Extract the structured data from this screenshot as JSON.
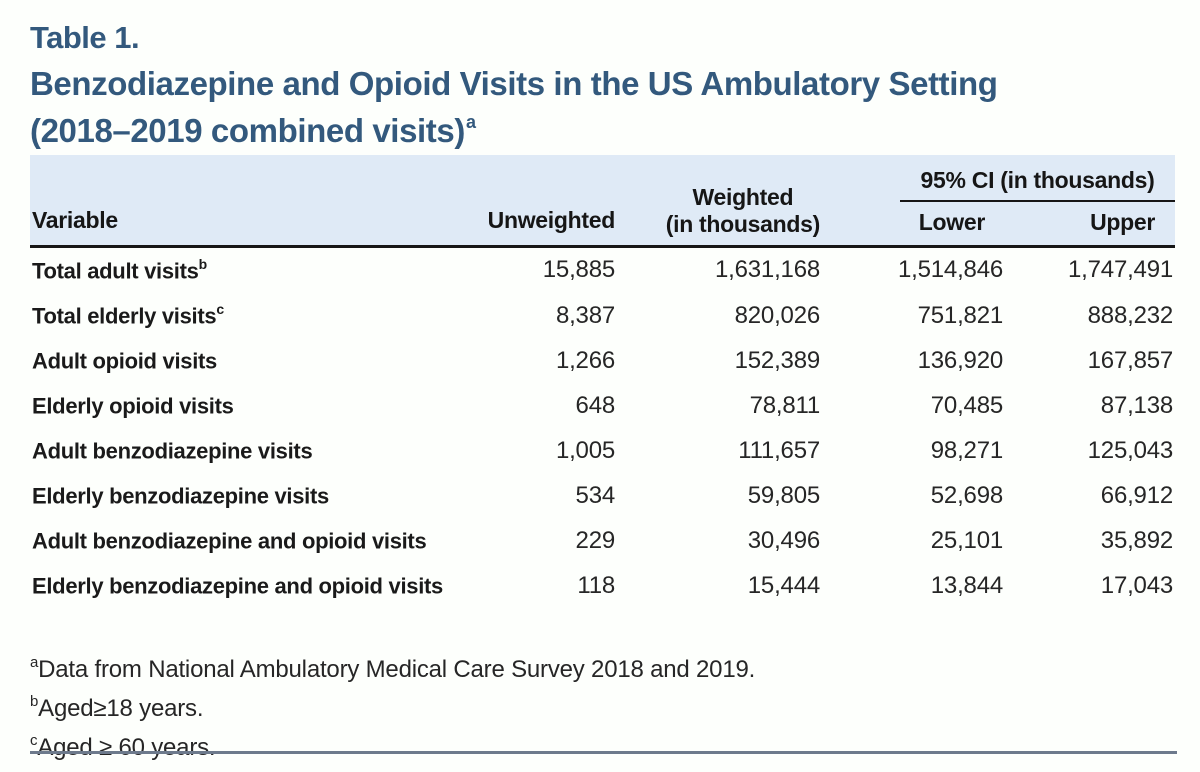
{
  "heading": {
    "table_label": "Table 1.",
    "title_line1": "Benzodiazepine and Opioid Visits in the US Ambulatory Setting",
    "title_line2": "(2018–2019 combined visits)",
    "title_superscript": "a"
  },
  "table": {
    "columns": {
      "variable": "Variable",
      "unweighted": "Unweighted",
      "weighted_line1": "Weighted",
      "weighted_line2": "(in thousands)",
      "ci_group": "95% CI (in thousands)",
      "ci_lower": "Lower",
      "ci_upper": "Upper"
    },
    "rows": [
      {
        "variable": "Total adult visits",
        "superscript": "b",
        "unweighted": "15,885",
        "weighted": "1,631,168",
        "lower": "1,514,846",
        "upper": "1,747,491"
      },
      {
        "variable": "Total elderly visits",
        "superscript": "c",
        "unweighted": "8,387",
        "weighted": "820,026",
        "lower": "751,821",
        "upper": "888,232"
      },
      {
        "variable": "Adult opioid visits",
        "superscript": "",
        "unweighted": "1,266",
        "weighted": "152,389",
        "lower": "136,920",
        "upper": "167,857"
      },
      {
        "variable": "Elderly opioid visits",
        "superscript": "",
        "unweighted": "648",
        "weighted": "78,811",
        "lower": "70,485",
        "upper": "87,138"
      },
      {
        "variable": "Adult benzodiazepine visits",
        "superscript": "",
        "unweighted": "1,005",
        "weighted": "111,657",
        "lower": "98,271",
        "upper": "125,043"
      },
      {
        "variable": "Elderly benzodiazepine visits",
        "superscript": "",
        "unweighted": "534",
        "weighted": "59,805",
        "lower": "52,698",
        "upper": "66,912"
      },
      {
        "variable": "Adult benzodiazepine and opioid visits",
        "superscript": "",
        "unweighted": "229",
        "weighted": "30,496",
        "lower": "25,101",
        "upper": "35,892"
      },
      {
        "variable": "Elderly benzodiazepine and opioid visits",
        "superscript": "",
        "unweighted": "118",
        "weighted": "15,444",
        "lower": "13,844",
        "upper": "17,043"
      }
    ]
  },
  "footnotes": [
    {
      "superscript": "a",
      "text": "Data from National Ambulatory Medical Care Survey 2018 and 2019."
    },
    {
      "superscript": "b",
      "text": "Aged≥18 years."
    },
    {
      "superscript": "c",
      "text": "Aged ≥ 60 years."
    }
  ],
  "colors": {
    "accent_blue": "#33597d",
    "header_background": "#dfeaf6",
    "header_rule_black": "#161616",
    "bottom_rule_slate": "#6d7a8c",
    "body_text": "#262626"
  },
  "chart_data": {
    "type": "table",
    "title": "Benzodiazepine and Opioid Visits in the US Ambulatory Setting (2018–2019 combined visits)",
    "columns": [
      "Variable",
      "Unweighted",
      "Weighted (in thousands)",
      "95% CI Lower (in thousands)",
      "95% CI Upper (in thousands)"
    ],
    "rows": [
      [
        "Total adult visits",
        15885,
        1631168,
        1514846,
        1747491
      ],
      [
        "Total elderly visits",
        8387,
        820026,
        751821,
        888232
      ],
      [
        "Adult opioid visits",
        1266,
        152389,
        136920,
        167857
      ],
      [
        "Elderly opioid visits",
        648,
        78811,
        70485,
        87138
      ],
      [
        "Adult benzodiazepine visits",
        1005,
        111657,
        98271,
        125043
      ],
      [
        "Elderly benzodiazepine visits",
        534,
        59805,
        52698,
        66912
      ],
      [
        "Adult benzodiazepine and opioid visits",
        229,
        30496,
        25101,
        35892
      ],
      [
        "Elderly benzodiazepine and opioid visits",
        118,
        15444,
        13844,
        17043
      ]
    ]
  }
}
